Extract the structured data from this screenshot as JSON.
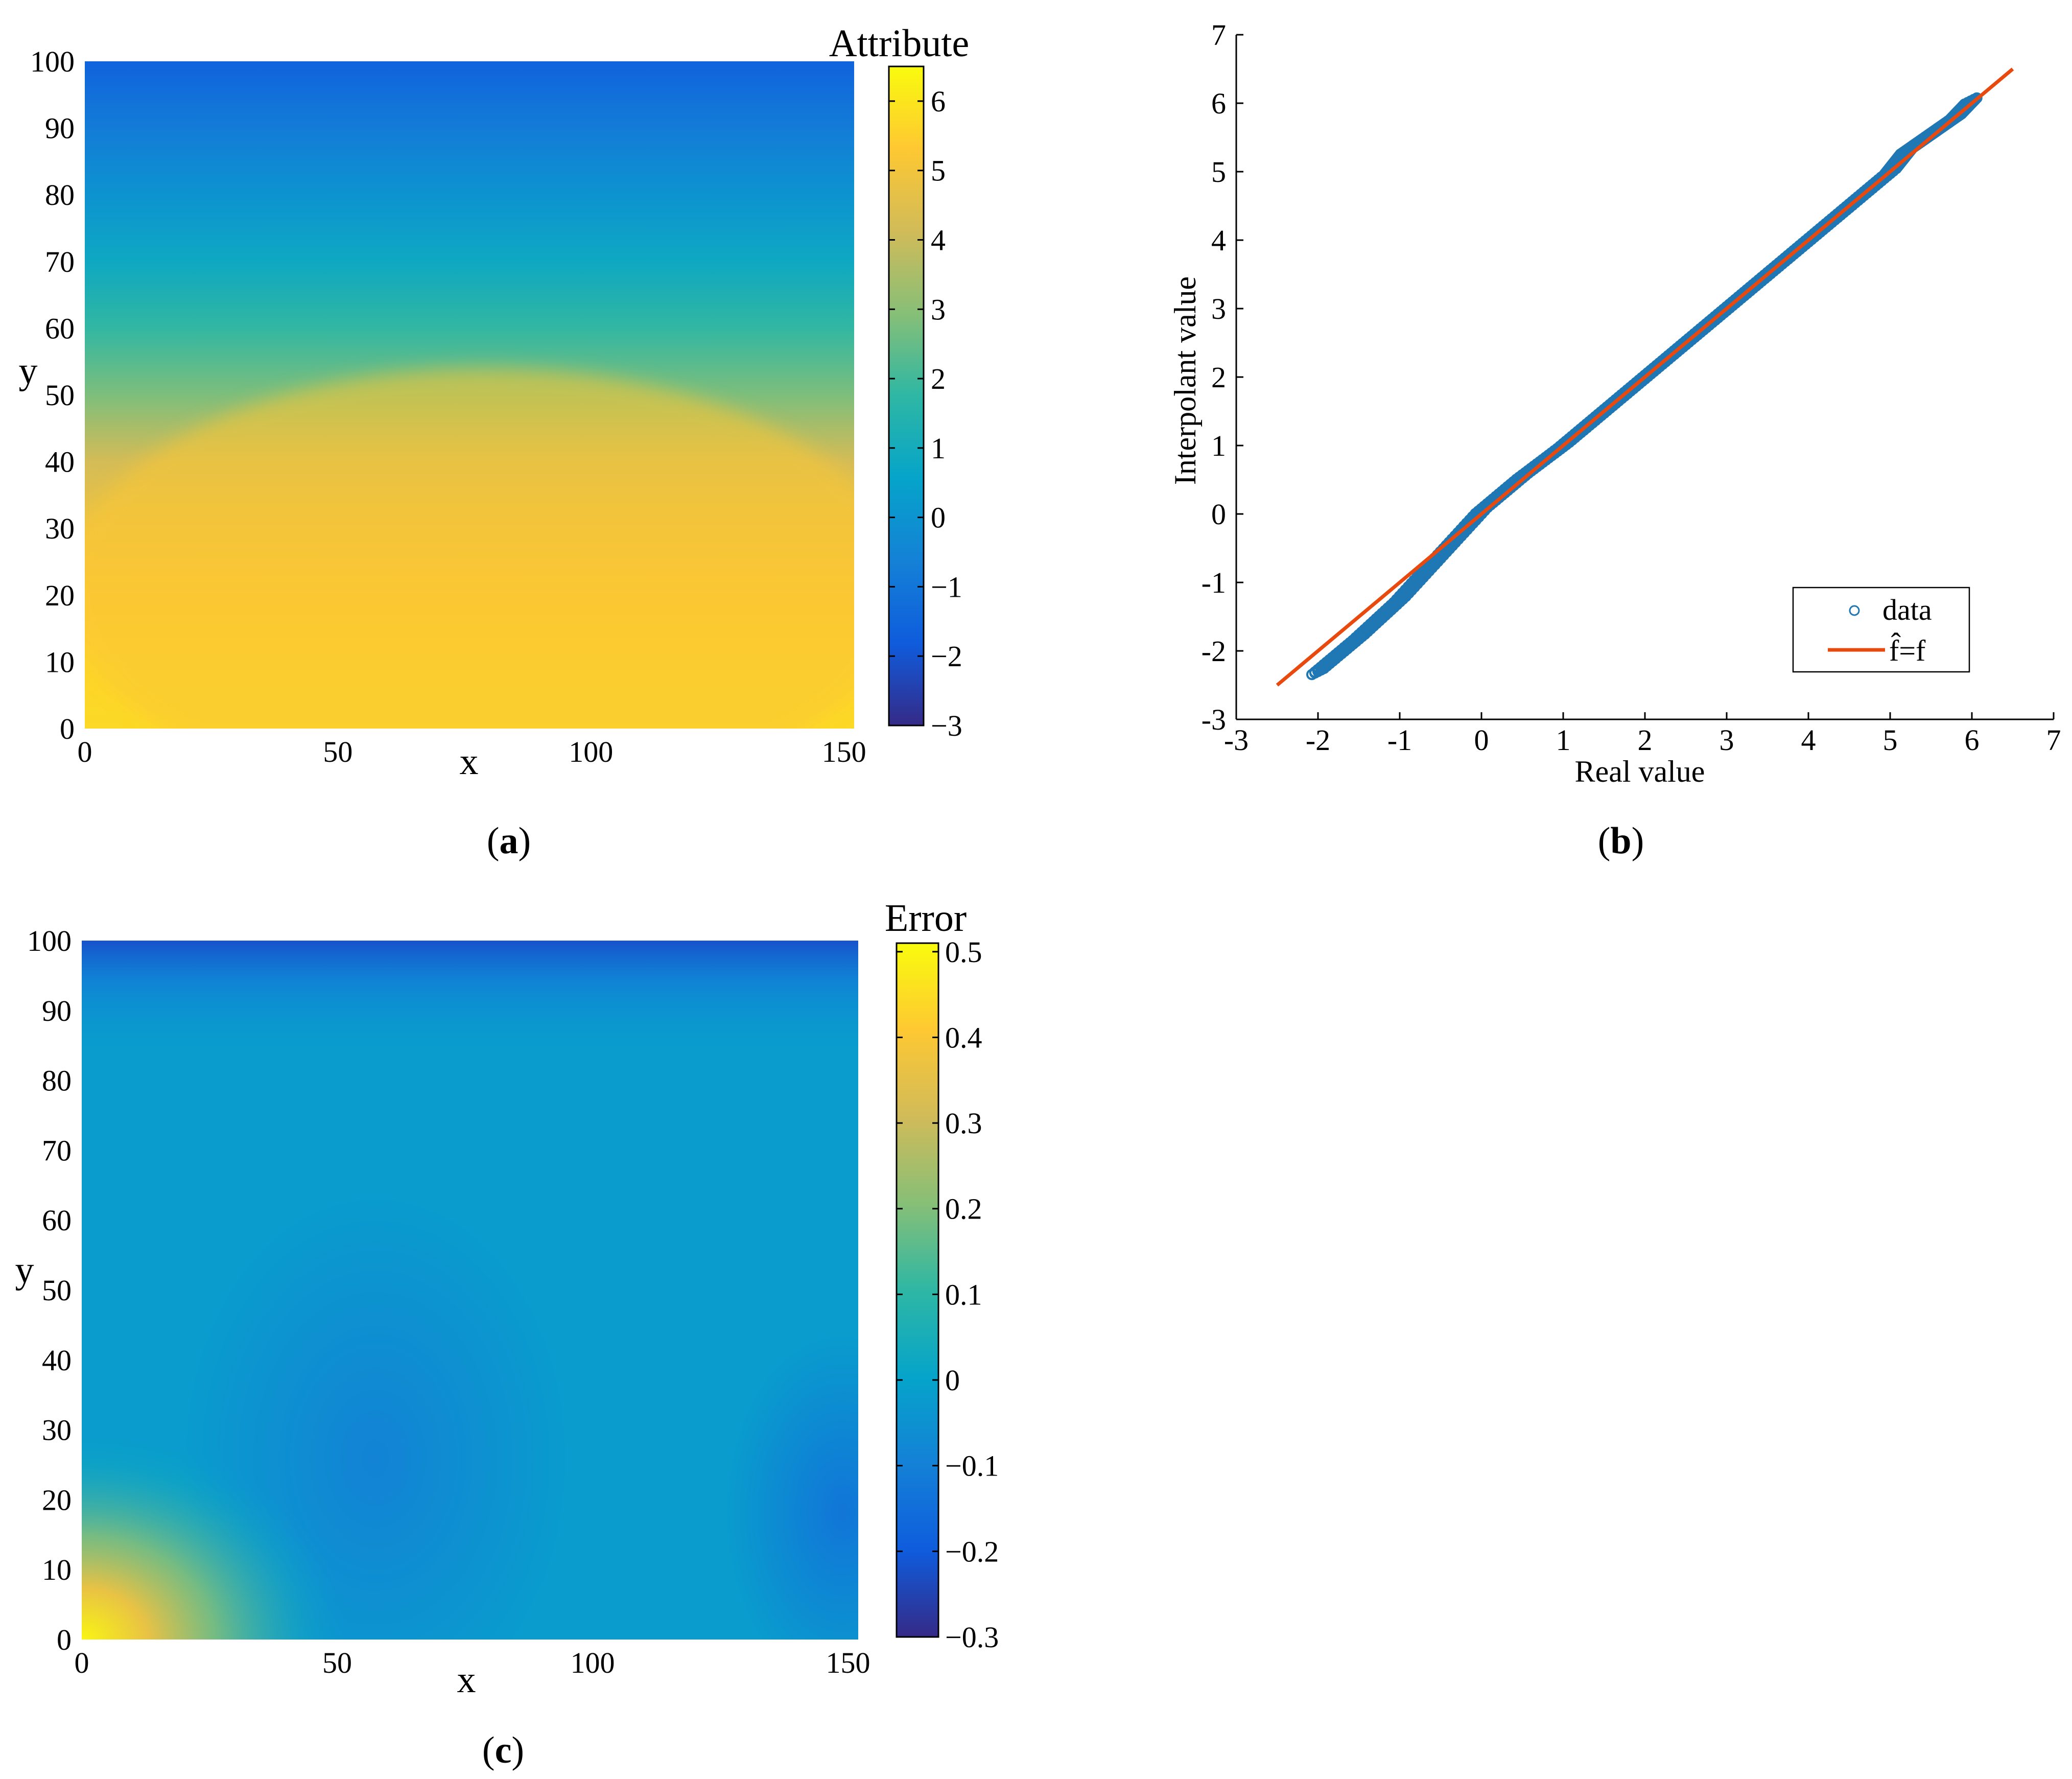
{
  "colors": {
    "parula": [
      "#352a87",
      "#0f5cdd",
      "#1481d6",
      "#06a4ca",
      "#2eb7a4",
      "#87bf77",
      "#d1bb59",
      "#fec832",
      "#f9fb0e"
    ],
    "data_marker": "#1f77b4",
    "fit_line": "#e8490f"
  },
  "panels": {
    "a": {
      "label_open": "(",
      "label_letter": "a",
      "label_close": ")"
    },
    "b": {
      "label_open": "(",
      "label_letter": "b",
      "label_close": ")"
    },
    "c": {
      "label_open": "(",
      "label_letter": "c",
      "label_close": ")"
    }
  },
  "chart_data": [
    {
      "type": "heatmap",
      "panel": "a",
      "title": "",
      "xlabel": "x",
      "ylabel": "y",
      "xlim": [
        0,
        152
      ],
      "ylim": [
        0,
        100
      ],
      "xticks": [
        "0",
        "50",
        "100",
        "150"
      ],
      "xtick_values": [
        0,
        50,
        100,
        150
      ],
      "yticks": [
        "0",
        "10",
        "20",
        "30",
        "40",
        "50",
        "60",
        "70",
        "80",
        "90",
        "100"
      ],
      "ytick_values": [
        0,
        10,
        20,
        30,
        40,
        50,
        60,
        70,
        80,
        90,
        100
      ],
      "colorbar": {
        "title": "Attribute",
        "range": [
          -3,
          6.5
        ],
        "ticks": [
          "−3",
          "−2",
          "−1",
          "0",
          "1",
          "2",
          "3",
          "4",
          "5",
          "6"
        ],
        "tick_values": [
          -3,
          -2,
          -1,
          0,
          1,
          2,
          3,
          4,
          5,
          6
        ]
      },
      "y_bands": [
        100,
        90,
        80,
        70,
        60,
        50,
        45,
        40,
        30,
        20,
        10,
        0
      ],
      "band_values": [
        -1.6,
        -0.8,
        0.0,
        0.8,
        1.8,
        2.8,
        3.5,
        4.2,
        4.9,
        5.3,
        5.6,
        5.7
      ]
    },
    {
      "type": "scatter",
      "panel": "b",
      "title": "",
      "xlabel": "Real value",
      "ylabel": "Interpolant value",
      "xlim": [
        -3,
        7
      ],
      "ylim": [
        -3,
        7
      ],
      "xticks": [
        "-3",
        "-2",
        "-1",
        "0",
        "1",
        "2",
        "3",
        "4",
        "5",
        "6",
        "7"
      ],
      "yticks": [
        "-3",
        "-2",
        "-1",
        "0",
        "1",
        "2",
        "3",
        "4",
        "5",
        "6",
        "7"
      ],
      "tick_values": [
        -3,
        -2,
        -1,
        0,
        1,
        2,
        3,
        4,
        5,
        6,
        7
      ],
      "series": [
        {
          "name": "data",
          "kind": "markers",
          "x": [
            -2.0,
            -1.5,
            -1.0,
            -0.5,
            0.0,
            0.5,
            1.0,
            1.5,
            2.0,
            2.5,
            3.0,
            3.5,
            4.0,
            4.5,
            5.0,
            5.2,
            5.5,
            5.8,
            6.0
          ],
          "y": [
            -2.3,
            -1.8,
            -1.25,
            -0.6,
            0.05,
            0.55,
            1.0,
            1.5,
            2.0,
            2.5,
            3.0,
            3.5,
            4.0,
            4.5,
            5.0,
            5.3,
            5.55,
            5.8,
            6.05
          ]
        },
        {
          "name": "f̂=f",
          "kind": "line",
          "x": [
            -2.5,
            6.5
          ],
          "y": [
            -2.5,
            6.5
          ]
        }
      ],
      "legend": {
        "placement": "lower-right",
        "entries": [
          "data",
          "f̂=f"
        ]
      }
    },
    {
      "type": "heatmap",
      "panel": "c",
      "title": "",
      "xlabel": "x",
      "ylabel": "y",
      "xlim": [
        0,
        152
      ],
      "ylim": [
        0,
        100
      ],
      "xticks": [
        "0",
        "50",
        "100",
        "150"
      ],
      "xtick_values": [
        0,
        50,
        100,
        150
      ],
      "yticks": [
        "0",
        "10",
        "20",
        "30",
        "40",
        "50",
        "60",
        "70",
        "80",
        "90",
        "100"
      ],
      "ytick_values": [
        0,
        10,
        20,
        30,
        40,
        50,
        60,
        70,
        80,
        90,
        100
      ],
      "colorbar": {
        "title": "Error",
        "range": [
          -0.3,
          0.51
        ],
        "ticks": [
          "−0.3",
          "−0.2",
          "−0.1",
          "0",
          "0.1",
          "0.2",
          "0.3",
          "0.4",
          "0.5"
        ],
        "tick_values": [
          -0.3,
          -0.2,
          -0.1,
          0,
          0.1,
          0.2,
          0.3,
          0.4,
          0.5
        ]
      },
      "background_value": -0.02,
      "features": [
        {
          "kind": "top-edge",
          "value": -0.22
        },
        {
          "kind": "blob-center",
          "x": 60,
          "y": 27,
          "value": -0.1
        },
        {
          "kind": "blob-right",
          "x": 150,
          "y": 18,
          "value": -0.14
        },
        {
          "kind": "corner-bottom-left",
          "x": 0,
          "y": 0,
          "value": 0.5
        }
      ]
    }
  ]
}
